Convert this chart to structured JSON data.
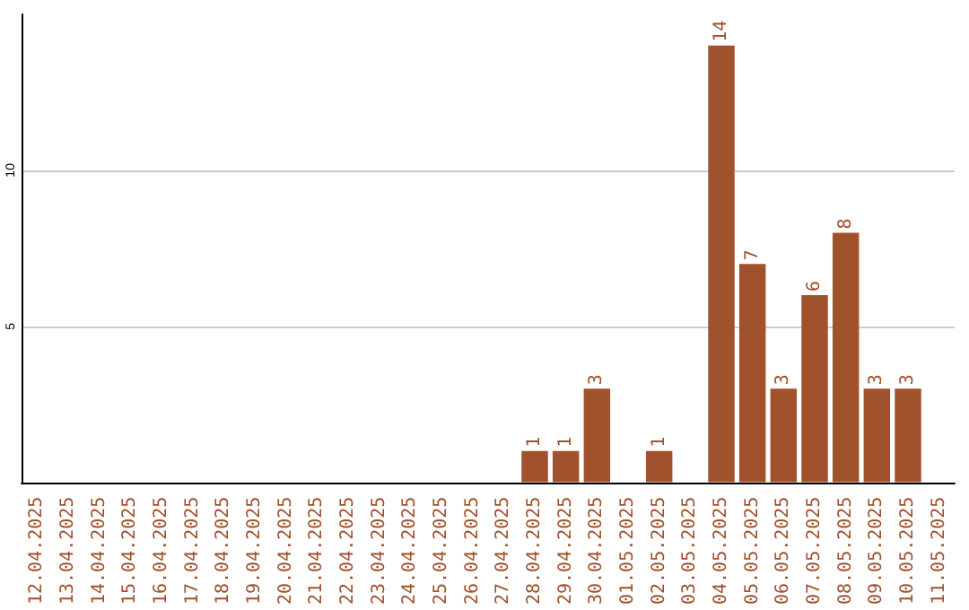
{
  "chart_data": {
    "type": "bar",
    "categories": [
      "12.04.2025",
      "13.04.2025",
      "14.04.2025",
      "15.04.2025",
      "16.04.2025",
      "17.04.2025",
      "18.04.2025",
      "19.04.2025",
      "20.04.2025",
      "21.04.2025",
      "22.04.2025",
      "23.04.2025",
      "24.04.2025",
      "25.04.2025",
      "26.04.2025",
      "27.04.2025",
      "28.04.2025",
      "29.04.2025",
      "30.04.2025",
      "01.05.2025",
      "02.05.2025",
      "03.05.2025",
      "04.05.2025",
      "05.05.2025",
      "06.05.2025",
      "07.05.2025",
      "08.05.2025",
      "09.05.2025",
      "10.05.2025",
      "11.05.2025"
    ],
    "values": [
      0,
      0,
      0,
      0,
      0,
      0,
      0,
      0,
      0,
      0,
      0,
      0,
      0,
      0,
      0,
      0,
      1,
      1,
      3,
      0,
      1,
      0,
      14,
      7,
      3,
      6,
      8,
      3,
      3,
      0
    ],
    "value_labels": [
      null,
      null,
      null,
      null,
      null,
      null,
      null,
      null,
      null,
      null,
      null,
      null,
      null,
      null,
      null,
      null,
      "1",
      "1",
      "3",
      null,
      "1",
      null,
      "14",
      "7",
      "3",
      "6",
      "8",
      "3",
      "3",
      null
    ],
    "color": "#a0522d",
    "ylim": [
      0,
      15
    ],
    "yticks": [
      5,
      10
    ],
    "grid": "y"
  }
}
